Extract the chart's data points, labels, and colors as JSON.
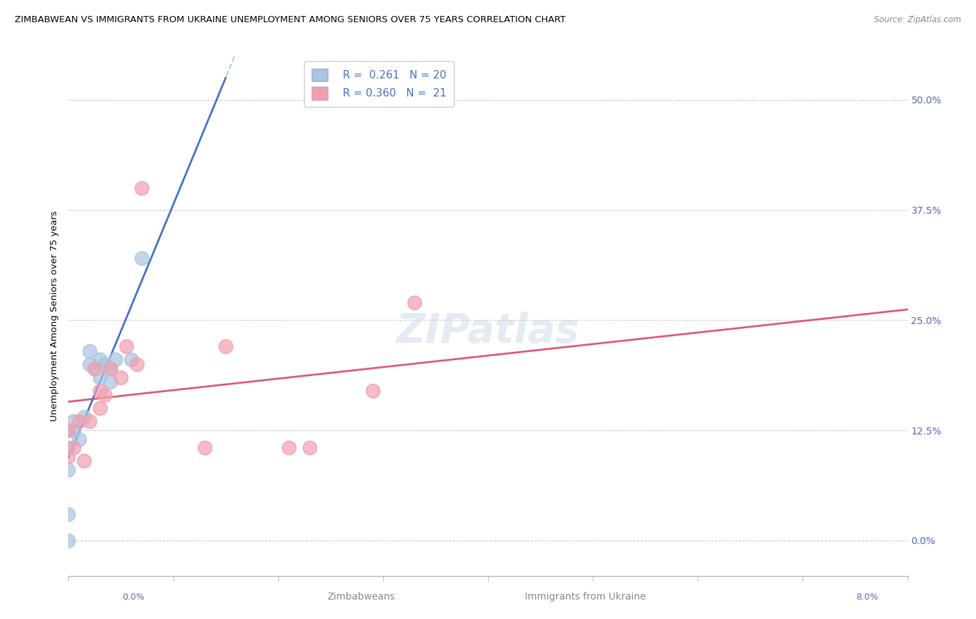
{
  "title": "ZIMBABWEAN VS IMMIGRANTS FROM UKRAINE UNEMPLOYMENT AMONG SENIORS OVER 75 YEARS CORRELATION CHART",
  "source": "Source: ZipAtlas.com",
  "ylabel": "Unemployment Among Seniors over 75 years",
  "ytick_labels": [
    "0.0%",
    "12.5%",
    "25.0%",
    "37.5%",
    "50.0%"
  ],
  "ytick_values": [
    0.0,
    12.5,
    25.0,
    37.5,
    50.0
  ],
  "xmin": 0.0,
  "xmax": 8.0,
  "ymin": -4.0,
  "ymax": 55.0,
  "legend_r1": "R =  0.261",
  "legend_n1": "N = 20",
  "legend_r2": "R = 0.360",
  "legend_n2": "N =  21",
  "zimbabwe_color": "#a8c4e0",
  "ukraine_color": "#f0a0b0",
  "trendline_zim_color": "#4472c4",
  "trendline_ukr_color": "#e05878",
  "trendline_zim_dashed_color": "#b0c8e8",
  "watermark": "ZIPatlas",
  "zim_solid_xmax": 1.5,
  "zimbabwe_x": [
    0.0,
    0.0,
    0.0,
    0.0,
    0.0,
    0.05,
    0.05,
    0.1,
    0.15,
    0.2,
    0.25,
    0.3,
    0.3,
    0.35,
    0.4,
    0.4,
    0.45,
    0.6,
    0.7,
    0.2
  ],
  "zimbabwe_y": [
    12.5,
    10.5,
    8.0,
    3.0,
    0.0,
    12.5,
    13.5,
    11.5,
    14.0,
    20.0,
    19.5,
    20.5,
    18.5,
    20.0,
    18.0,
    19.5,
    20.5,
    20.5,
    32.0,
    21.5
  ],
  "ukraine_x": [
    0.0,
    0.0,
    0.05,
    0.1,
    0.15,
    0.2,
    0.25,
    0.3,
    0.3,
    0.35,
    0.4,
    0.5,
    0.55,
    0.65,
    0.7,
    1.3,
    1.5,
    2.1,
    2.3,
    2.9,
    3.3
  ],
  "ukraine_y": [
    12.5,
    9.5,
    10.5,
    13.5,
    9.0,
    13.5,
    19.5,
    17.0,
    15.0,
    16.5,
    19.5,
    18.5,
    22.0,
    20.0,
    40.0,
    10.5,
    22.0,
    10.5,
    10.5,
    17.0,
    27.0
  ]
}
